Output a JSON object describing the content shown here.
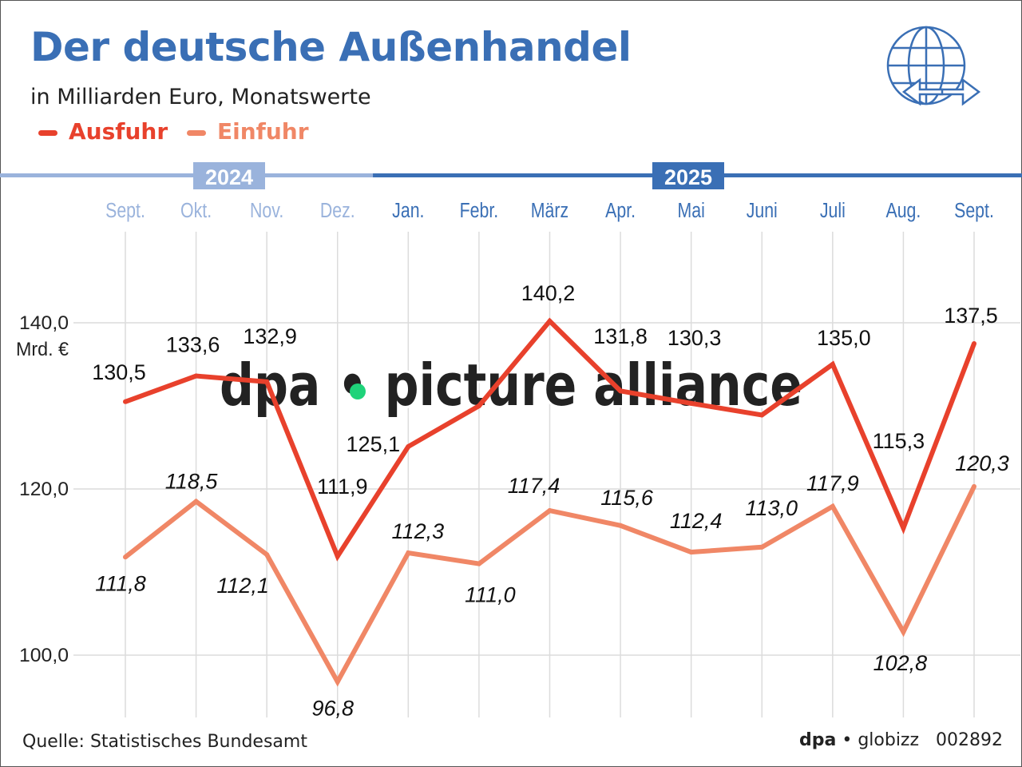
{
  "header": {
    "title": "Der deutsche Außenhandel",
    "subtitle": "in Milliarden Euro, Monatswerte"
  },
  "footer": {
    "source": "Quelle: Statistisches Bundesamt",
    "brand": "dpa",
    "brand2": "globizz",
    "code": "002892"
  },
  "watermark": "dpa • picture alliance",
  "colors": {
    "ausfuhr": "#e8412c",
    "einfuhr": "#f08766",
    "title": "#3a6fb5",
    "year2024": "#9ab3dc",
    "year2025": "#3a6fb5"
  },
  "icon": "globe-with-arrows-icon",
  "chart_data": {
    "type": "line",
    "title": "Der deutsche Außenhandel",
    "subtitle": "in Milliarden Euro, Monatswerte",
    "years": [
      {
        "label": "2024",
        "months": 4
      },
      {
        "label": "2025",
        "months": 9
      }
    ],
    "categories": [
      "Sept.",
      "Okt.",
      "Nov.",
      "Dez.",
      "Jan.",
      "Febr.",
      "März",
      "Apr.",
      "Mai",
      "Juni",
      "Juli",
      "Aug.",
      "Sept."
    ],
    "yticks": [
      {
        "value": 140,
        "label": "140,0"
      },
      {
        "value": 120,
        "label": "120,0"
      },
      {
        "value": 100,
        "label": "100,0"
      }
    ],
    "yunit": "Mrd. €",
    "ylim": [
      92,
      150
    ],
    "grid": true,
    "legend_placement": "top-left",
    "series": [
      {
        "name": "Ausfuhr",
        "values": [
          130.5,
          133.6,
          132.9,
          111.9,
          125.1,
          130.0,
          140.2,
          131.8,
          130.3,
          128.9,
          135.0,
          115.3,
          137.5
        ],
        "labels": [
          "130,5",
          "133,6",
          "132,9",
          "111,9",
          "125,1",
          "",
          "140,2",
          "131,8",
          "130,3",
          "",
          "135,0",
          "115,3",
          "137,5"
        ]
      },
      {
        "name": "Einfuhr",
        "values": [
          111.8,
          118.5,
          112.1,
          96.8,
          112.3,
          111.0,
          117.4,
          115.6,
          112.4,
          113.0,
          117.9,
          102.8,
          120.3
        ],
        "labels": [
          "111,8",
          "118,5",
          "112,1",
          "96,8",
          "112,3",
          "111,0",
          "117,4",
          "115,6",
          "112,4",
          "113,0",
          "117,9",
          "102,8",
          "120,3"
        ]
      }
    ]
  }
}
